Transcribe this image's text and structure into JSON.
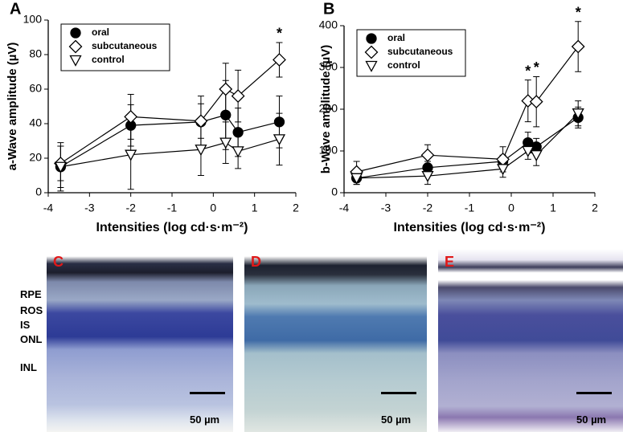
{
  "chart_data": [
    {
      "type": "line",
      "panel": "A",
      "ylabel": "a-Wave amplitude (µV)",
      "xlabel": "Intensities (log cd·s·m⁻²)",
      "xlim": [
        -4,
        2
      ],
      "xticks": [
        -4,
        -3,
        -2,
        -1,
        0,
        1,
        2
      ],
      "ylim": [
        0,
        100
      ],
      "yticks": [
        0,
        20,
        40,
        60,
        80,
        100
      ],
      "legend": "top-left",
      "series": [
        {
          "name": "oral",
          "marker": "circle",
          "color": "#000000",
          "x": [
            -3.7,
            -2,
            -0.3,
            0.3,
            0.6,
            1.6
          ],
          "values": [
            15,
            39,
            41,
            45,
            35,
            41
          ],
          "error": [
            12,
            12,
            15,
            20,
            14,
            15
          ]
        },
        {
          "name": "subcutaneous",
          "marker": "diamond",
          "color": "#ffffff",
          "x": [
            -3.7,
            -2,
            -0.3,
            0.3,
            0.6,
            1.6
          ],
          "values": [
            17,
            44,
            41.5,
            60,
            56,
            77
          ],
          "error": [
            10,
            13,
            10,
            15,
            15,
            10
          ]
        },
        {
          "name": "control",
          "marker": "triangle-down",
          "color": "#ffffff",
          "x": [
            -3.7,
            -2,
            -0.3,
            0.3,
            0.6,
            1.6
          ],
          "values": [
            15,
            22,
            25,
            29,
            24,
            31
          ],
          "error": [
            14,
            20,
            15,
            12,
            10,
            15
          ]
        }
      ],
      "annotations": [
        {
          "x": 1.6,
          "label": "*"
        }
      ]
    },
    {
      "type": "line",
      "panel": "B",
      "ylabel": "b-Wave amplitude (µV)",
      "xlabel": "Intensities (log cd·s·m⁻²)",
      "xlim": [
        -4,
        2
      ],
      "xticks": [
        -4,
        -3,
        -2,
        -1,
        0,
        1,
        2
      ],
      "ylim": [
        0,
        400
      ],
      "yticks": [
        0,
        100,
        200,
        300,
        400
      ],
      "legend": "top-left",
      "series": [
        {
          "name": "oral",
          "marker": "circle",
          "color": "#000000",
          "x": [
            -3.7,
            -2,
            -0.2,
            0.4,
            0.6,
            1.6
          ],
          "values": [
            35,
            60,
            75,
            120,
            110,
            180
          ],
          "error": [
            15,
            15,
            15,
            25,
            20,
            25
          ]
        },
        {
          "name": "subcutaneous",
          "marker": "diamond",
          "color": "#ffffff",
          "x": [
            -3.7,
            -2,
            -0.2,
            0.4,
            0.6,
            1.6
          ],
          "values": [
            50,
            90,
            80,
            220,
            218,
            350
          ],
          "error": [
            25,
            25,
            30,
            50,
            60,
            60
          ]
        },
        {
          "name": "control",
          "marker": "triangle-down",
          "color": "#ffffff",
          "x": [
            -3.7,
            -2,
            -0.2,
            0.4,
            0.6,
            1.6
          ],
          "values": [
            35,
            40,
            57,
            100,
            90,
            190
          ],
          "error": [
            15,
            20,
            20,
            20,
            25,
            30
          ]
        }
      ],
      "annotations": [
        {
          "x": 0.4,
          "label": "*"
        },
        {
          "x": 0.6,
          "label": "*"
        },
        {
          "x": 1.6,
          "label": "*"
        }
      ]
    }
  ],
  "histology": {
    "layer_labels": [
      "RPE",
      "ROS",
      "IS",
      "ONL",
      "INL"
    ],
    "images": [
      {
        "label": "C",
        "scale_bar": "50 µm"
      },
      {
        "label": "D",
        "scale_bar": "50 µm"
      },
      {
        "label": "E",
        "scale_bar": "50 µm"
      }
    ]
  }
}
